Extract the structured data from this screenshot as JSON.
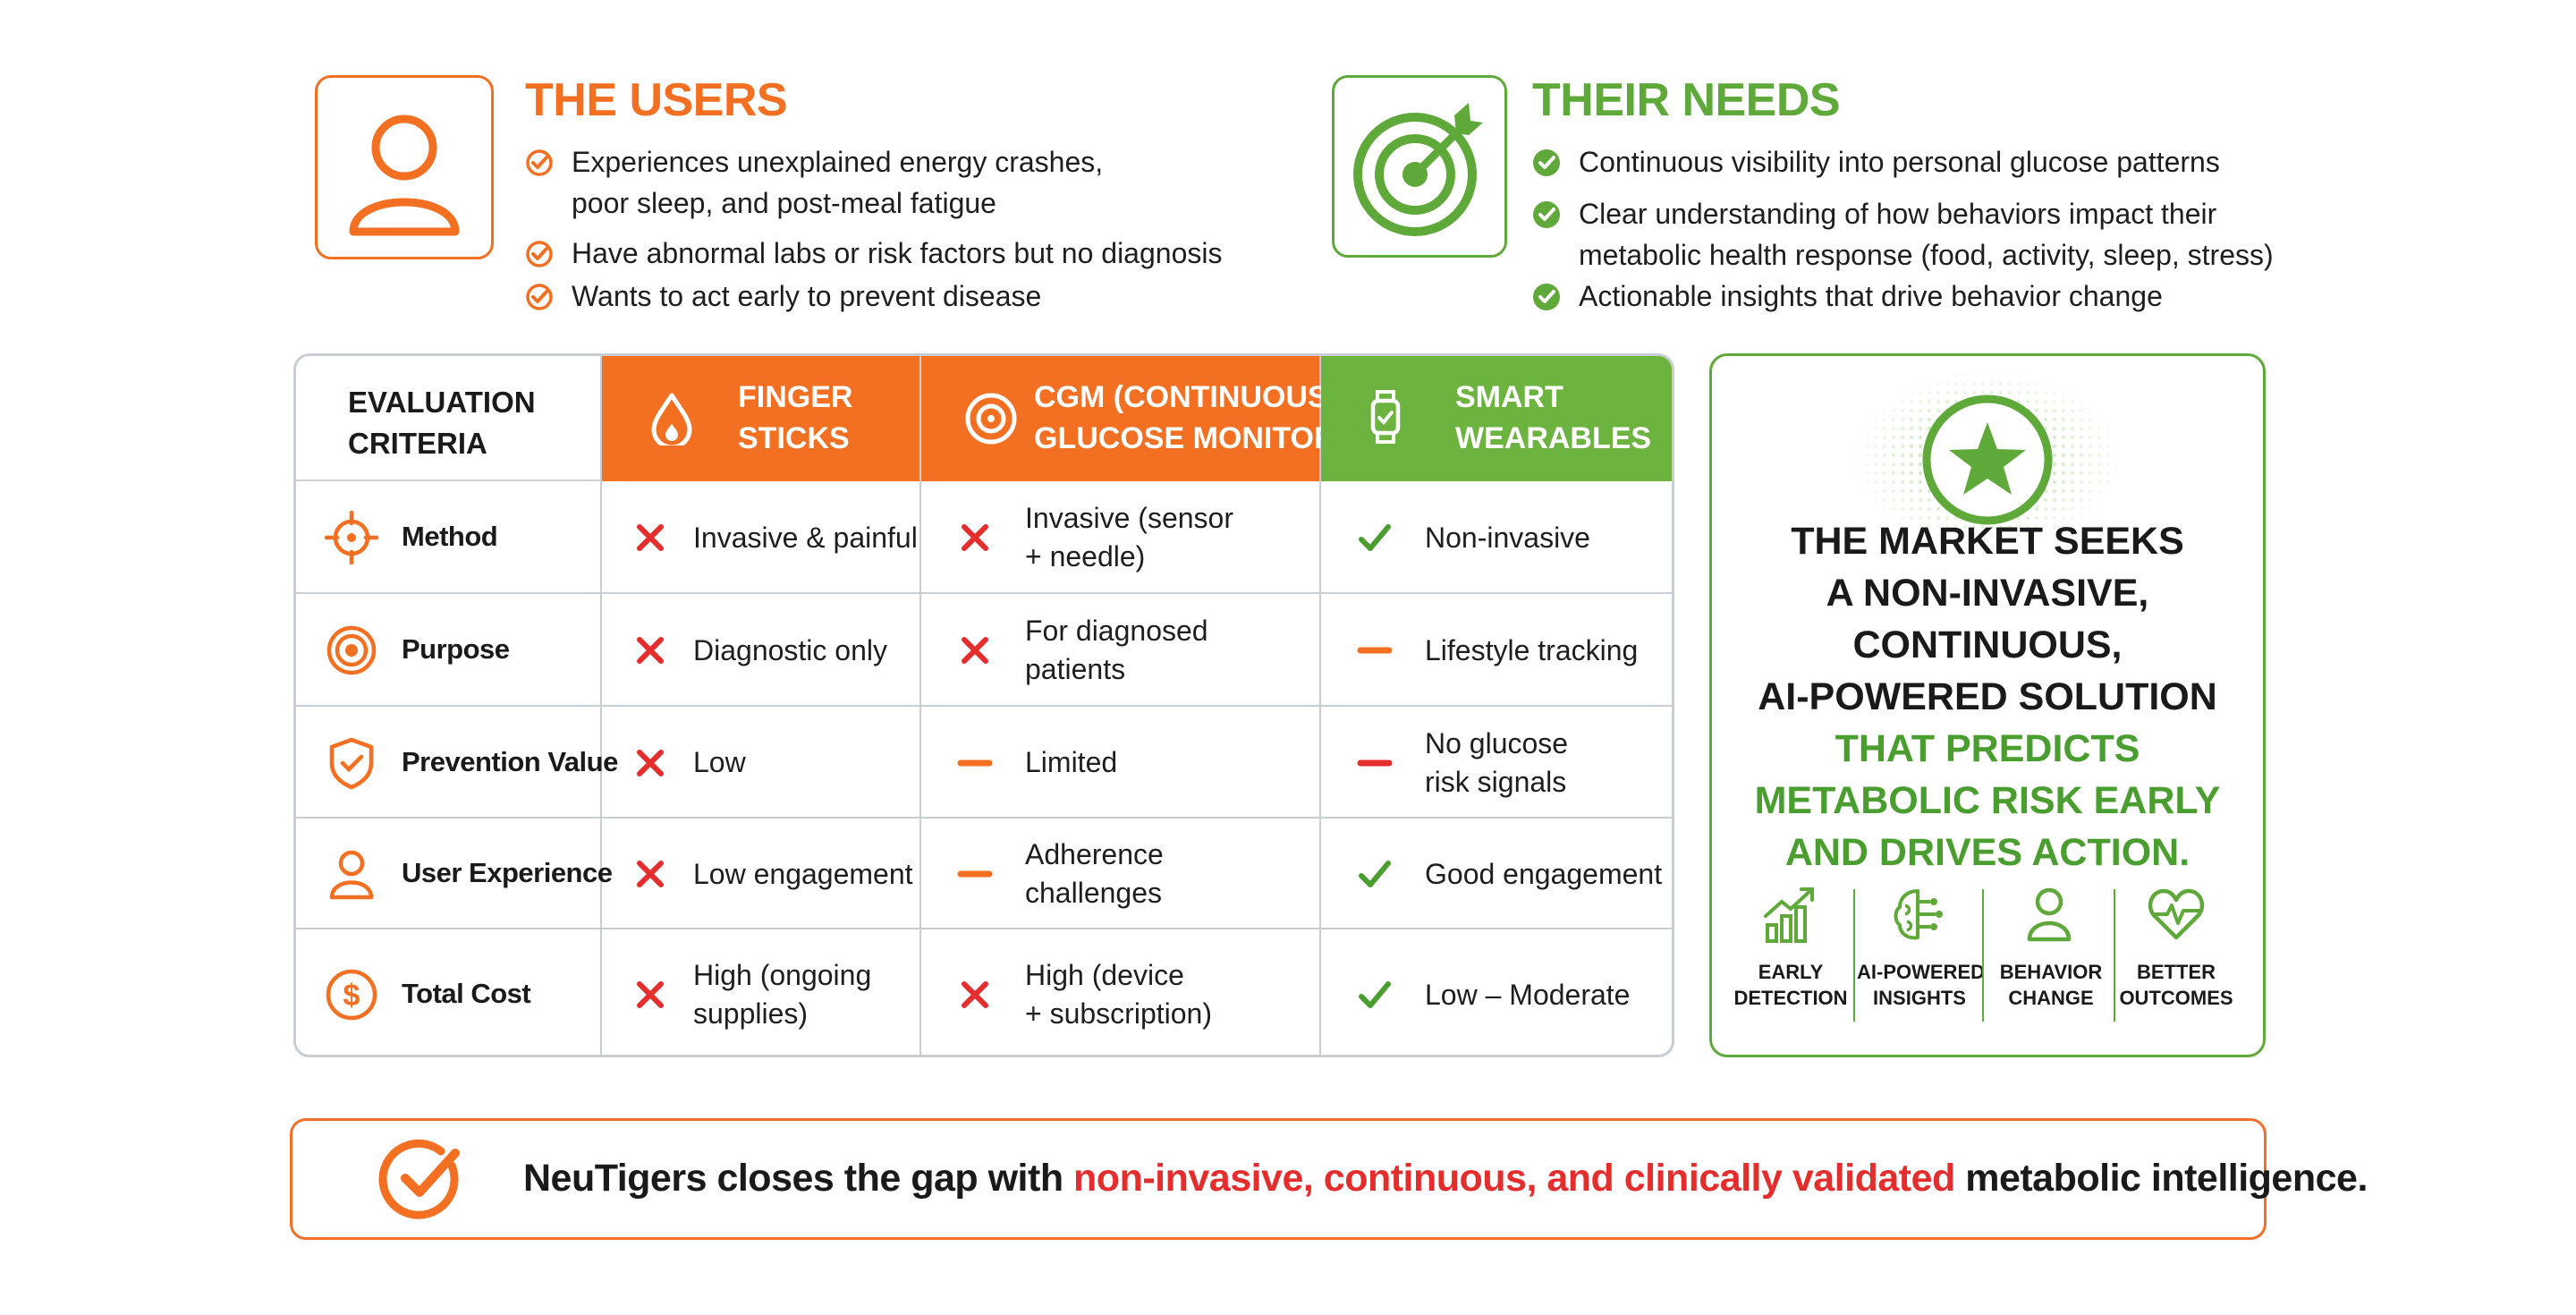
{
  "users": {
    "title": "THE USERS",
    "icon": "user-icon",
    "bullets": [
      [
        "Experiences unexplained energy crashes,",
        "poor sleep, and post-meal fatigue"
      ],
      [
        "Have abnormal labs or risk factors but no diagnosis"
      ],
      [
        "Wants to act early to prevent disease"
      ]
    ]
  },
  "needs": {
    "title": "THEIR NEEDS",
    "icon": "target-icon",
    "bullets": [
      [
        "Continuous visibility into personal glucose patterns"
      ],
      [
        "Clear understanding of how behaviors impact their",
        "metabolic health response (food, activity, sleep, stress)"
      ],
      [
        "Actionable insights that drive behavior change"
      ]
    ]
  },
  "table": {
    "criteria_header": [
      "EVALUATION",
      "CRITERIA"
    ],
    "columns": [
      {
        "label": [
          "FINGER",
          "STICKS"
        ],
        "icon": "blood-drop-icon",
        "color": "#f36f21"
      },
      {
        "label": [
          "CGM (CONTINUOUS",
          "GLUCOSE MONITOR)"
        ],
        "icon": "sensor-icon",
        "color": "#f36f21"
      },
      {
        "label": [
          "SMART",
          "WEARABLES"
        ],
        "icon": "smartwatch-icon",
        "color": "#6cb33f"
      }
    ],
    "rows": [
      {
        "criterion": "Method",
        "icon": "crosshair-icon",
        "cells": [
          {
            "mark": "cross",
            "text": [
              "Invasive & painful"
            ]
          },
          {
            "mark": "cross",
            "text": [
              "Invasive (sensor",
              "+ needle)"
            ]
          },
          {
            "mark": "check",
            "text": [
              "Non-invasive"
            ]
          }
        ]
      },
      {
        "criterion": "Purpose",
        "icon": "target-icon",
        "cells": [
          {
            "mark": "cross",
            "text": [
              "Diagnostic only"
            ]
          },
          {
            "mark": "cross",
            "text": [
              "For diagnosed",
              "patients"
            ]
          },
          {
            "mark": "dash-orange",
            "text": [
              "Lifestyle tracking"
            ]
          }
        ]
      },
      {
        "criterion": "Prevention Value",
        "icon": "shield-icon",
        "cells": [
          {
            "mark": "cross",
            "text": [
              "Low"
            ]
          },
          {
            "mark": "dash-orange",
            "text": [
              "Limited"
            ]
          },
          {
            "mark": "dash-red",
            "text": [
              "No glucose",
              "risk signals"
            ]
          }
        ]
      },
      {
        "criterion": "User Experience",
        "icon": "user-icon",
        "cells": [
          {
            "mark": "cross",
            "text": [
              "Low engagement"
            ]
          },
          {
            "mark": "dash-orange",
            "text": [
              "Adherence",
              "challenges"
            ]
          },
          {
            "mark": "check",
            "text": [
              "Good engagement"
            ]
          }
        ]
      },
      {
        "criterion": "Total Cost",
        "icon": "dollar-icon",
        "cells": [
          {
            "mark": "cross",
            "text": [
              "High (ongoing",
              "supplies)"
            ]
          },
          {
            "mark": "cross",
            "text": [
              "High (device",
              "+ subscription)"
            ]
          },
          {
            "mark": "check",
            "text": [
              "Low – Moderate"
            ]
          }
        ]
      }
    ]
  },
  "panel": {
    "icon": "star-icon",
    "lines_dark": [
      "THE MARKET SEEKS",
      "A NON-INVASIVE,",
      "CONTINUOUS,",
      "AI-POWERED SOLUTION"
    ],
    "lines_green": [
      "THAT PREDICTS",
      "METABOLIC RISK EARLY",
      "AND DRIVES ACTION."
    ],
    "features": [
      {
        "icon": "growth-chart-icon",
        "label": [
          "EARLY",
          "DETECTION"
        ]
      },
      {
        "icon": "brain-icon",
        "label": [
          "AI-POWERED",
          "INSIGHTS"
        ]
      },
      {
        "icon": "person-icon",
        "label": [
          "BEHAVIOR",
          "CHANGE"
        ]
      },
      {
        "icon": "heart-pulse-icon",
        "label": [
          "BETTER",
          "OUTCOMES"
        ]
      }
    ]
  },
  "banner": {
    "icon": "check-circle-icon",
    "text_start": "NeuTigers closes the gap with ",
    "text_highlight": "non-invasive, continuous, and clinically validated",
    "text_end": " metabolic intelligence."
  },
  "colors": {
    "orange": "#f36f21",
    "green": "#6cb33f",
    "red": "#e42d2d",
    "border": "#c9cdd4"
  }
}
